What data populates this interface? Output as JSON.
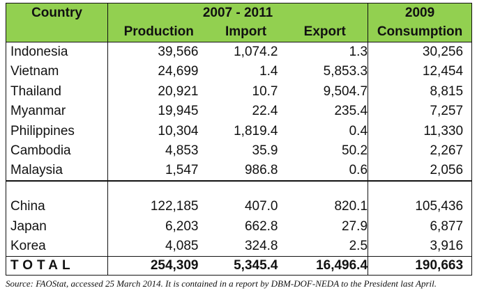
{
  "table": {
    "headers": {
      "country": "Country",
      "period": "2007 - 2011",
      "production": "Production",
      "import": "Import",
      "export": "Export",
      "year": "2009",
      "consumption": "Consumption"
    },
    "group1": [
      {
        "country": "Indonesia",
        "production": "39,566",
        "import": "1,074.2",
        "export": "1.3",
        "consumption": "30,256"
      },
      {
        "country": "Vietnam",
        "production": "24,699",
        "import": "1.4",
        "export": "5,853.3",
        "consumption": "12,454"
      },
      {
        "country": "Thailand",
        "production": "20,921",
        "import": "10.7",
        "export": "9,504.7",
        "consumption": "8,815"
      },
      {
        "country": "Myanmar",
        "production": "19,945",
        "import": "22.4",
        "export": "235.4",
        "consumption": "7,257"
      },
      {
        "country": "Philippines",
        "production": "10,304",
        "import": "1,819.4",
        "export": "0.4",
        "consumption": "11,330"
      },
      {
        "country": "Cambodia",
        "production": "4,853",
        "import": "35.9",
        "export": "50.2",
        "consumption": "2,267"
      },
      {
        "country": "Malaysia",
        "production": "1,547",
        "import": "986.8",
        "export": "0.6",
        "consumption": "2,056"
      }
    ],
    "group2": [
      {
        "country": "China",
        "production": "122,185",
        "import": "407.0",
        "export": "820.1",
        "consumption": "105,436"
      },
      {
        "country": "Japan",
        "production": "6,203",
        "import": "662.8",
        "export": "27.9",
        "consumption": "6,877"
      },
      {
        "country": "Korea",
        "production": "4,085",
        "import": "324.8",
        "export": "2.5",
        "consumption": "3,916"
      }
    ],
    "total": {
      "label": "TOTAL",
      "production": "254,309",
      "import": "5,345.4",
      "export": "16,496.4",
      "consumption": "190,663"
    }
  },
  "source_note": "Source: FAOStat, accessed 25 March 2014. It is contained in a report by DBM-DOF-NEDA to the President last April."
}
